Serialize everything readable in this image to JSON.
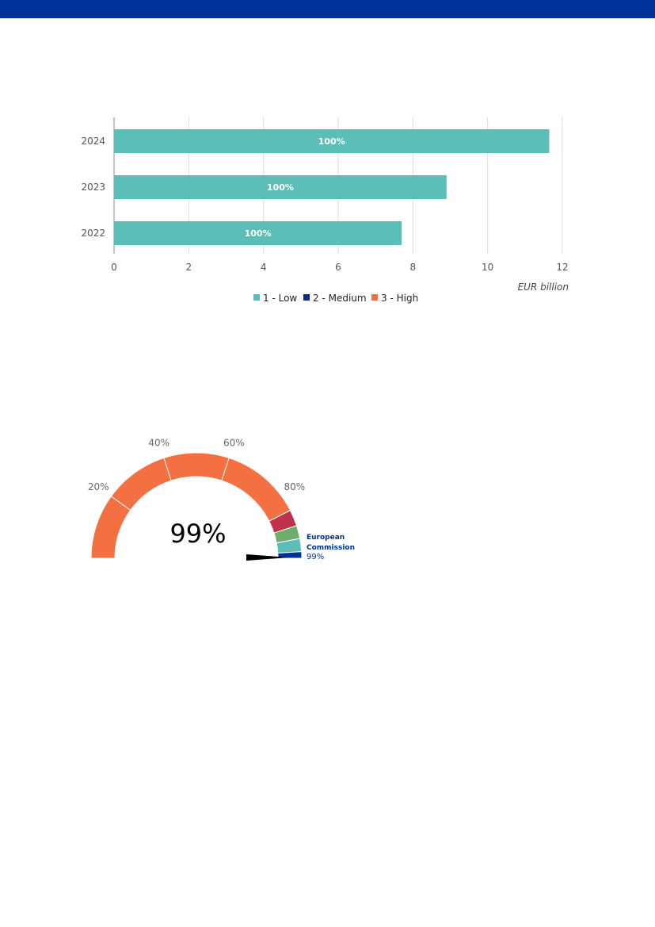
{
  "header": {
    "color": "#003399"
  },
  "chart_data": [
    {
      "type": "bar",
      "orientation": "horizontal",
      "categories": [
        "2024",
        "2023",
        "2022"
      ],
      "series": [
        {
          "name": "1 - Low",
          "color": "#5bbfb7",
          "values": [
            11.65,
            8.9,
            7.7
          ],
          "labels": [
            "100%",
            "100%",
            "100%"
          ]
        },
        {
          "name": "2 - Medium",
          "color": "#0c2d83",
          "values": [
            0,
            0,
            0
          ]
        },
        {
          "name": "3 - High",
          "color": "#f07046",
          "values": [
            0,
            0,
            0
          ]
        }
      ],
      "xlim": [
        0,
        12
      ],
      "xticks": [
        "0",
        "2",
        "4",
        "6",
        "8",
        "10",
        "12"
      ],
      "unit": "EUR billion",
      "grid": true,
      "legend_position": "bottom"
    },
    {
      "type": "gauge",
      "range": [
        0,
        100
      ],
      "ticks": [
        "20%",
        "40%",
        "60%",
        "80%"
      ],
      "center_label": "99%",
      "value": 99,
      "segments": [
        {
          "from": 0,
          "to": 85,
          "color": "#f37043"
        },
        {
          "from": 85,
          "to": 90,
          "color": "#c0324c"
        },
        {
          "from": 90,
          "to": 94,
          "color": "#6fad6c"
        },
        {
          "from": 94,
          "to": 98,
          "color": "#5bbfb7"
        },
        {
          "from": 98,
          "to": 100,
          "color": "#003399"
        }
      ],
      "annotation": {
        "line1": "European",
        "line2": "Commission",
        "value": "99%",
        "color": "#003399"
      }
    }
  ]
}
